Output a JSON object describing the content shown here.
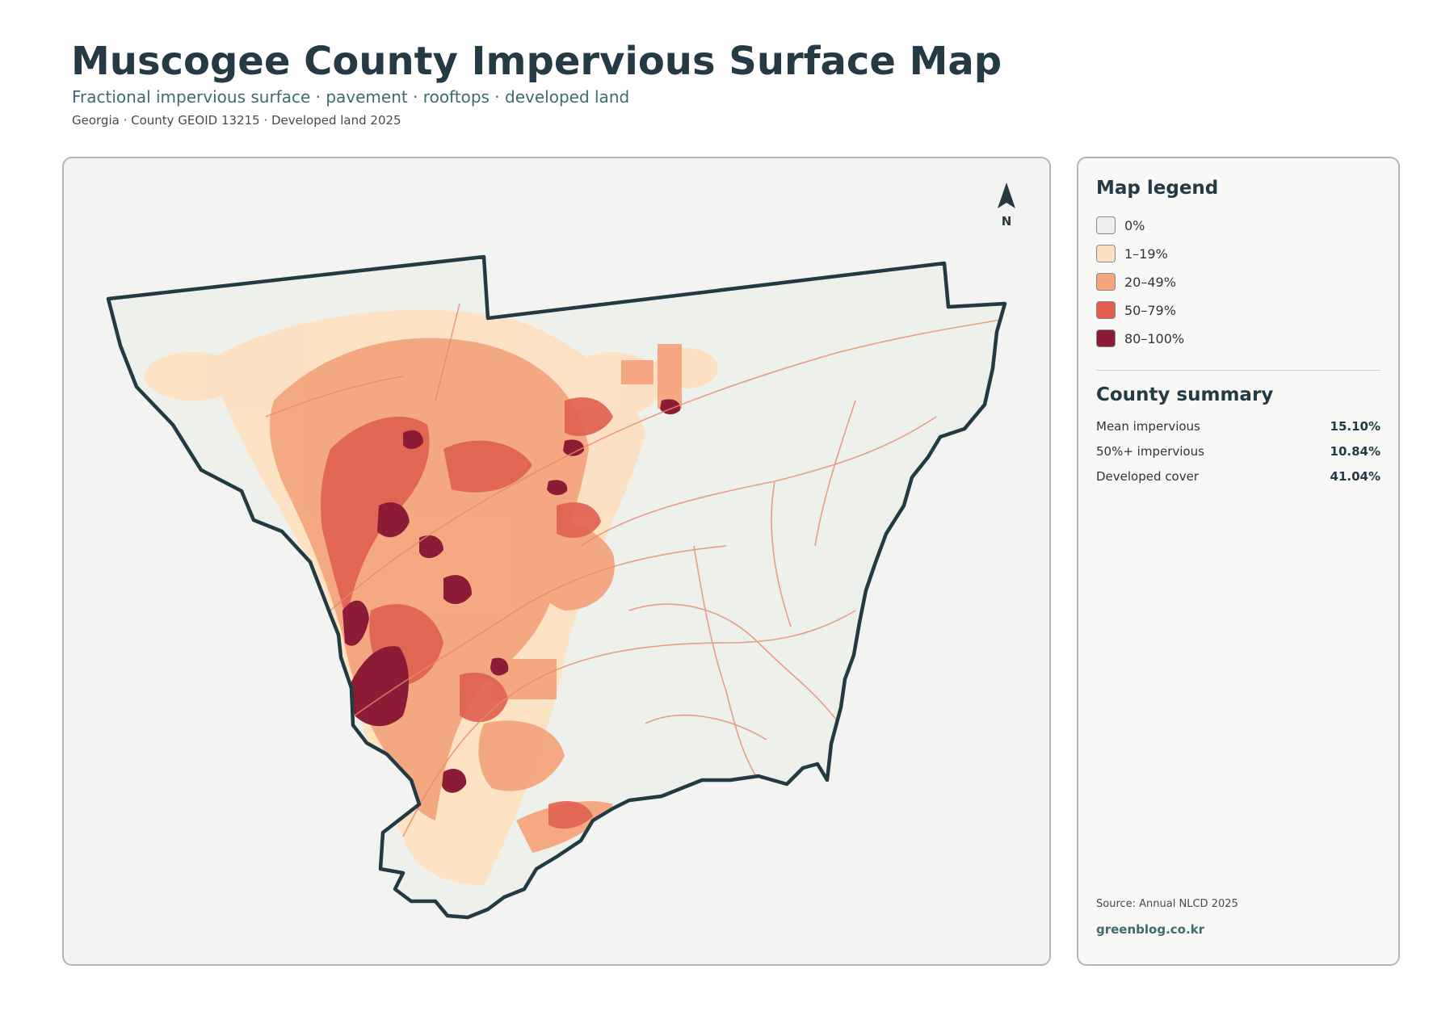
{
  "header": {
    "title": "Muscogee County Impervious Surface Map",
    "subtitle": "Fractional impervious surface · pavement · rooftops · developed land",
    "meta": "Georgia · County GEOID 13215 · Developed land 2025"
  },
  "map": {
    "north_label": "N",
    "background_color": "#eef0ec",
    "boundary_color": "#223a42"
  },
  "legend": {
    "title": "Map legend",
    "items": [
      {
        "label": "0%",
        "color": "#eeeeec"
      },
      {
        "label": "1–19%",
        "color": "#fde0c2"
      },
      {
        "label": "20–49%",
        "color": "#f4a57e"
      },
      {
        "label": "50–79%",
        "color": "#e05f4f"
      },
      {
        "label": "80–100%",
        "color": "#8c1c35"
      }
    ]
  },
  "summary": {
    "title": "County summary",
    "stats": [
      {
        "label": "Mean impervious",
        "value": "15.10%"
      },
      {
        "label": "50%+ impervious",
        "value": "10.84%"
      },
      {
        "label": "Developed cover",
        "value": "41.04%"
      }
    ]
  },
  "footer": {
    "source": "Source: Annual NLCD 2025",
    "site": "greenblog.co.kr"
  }
}
